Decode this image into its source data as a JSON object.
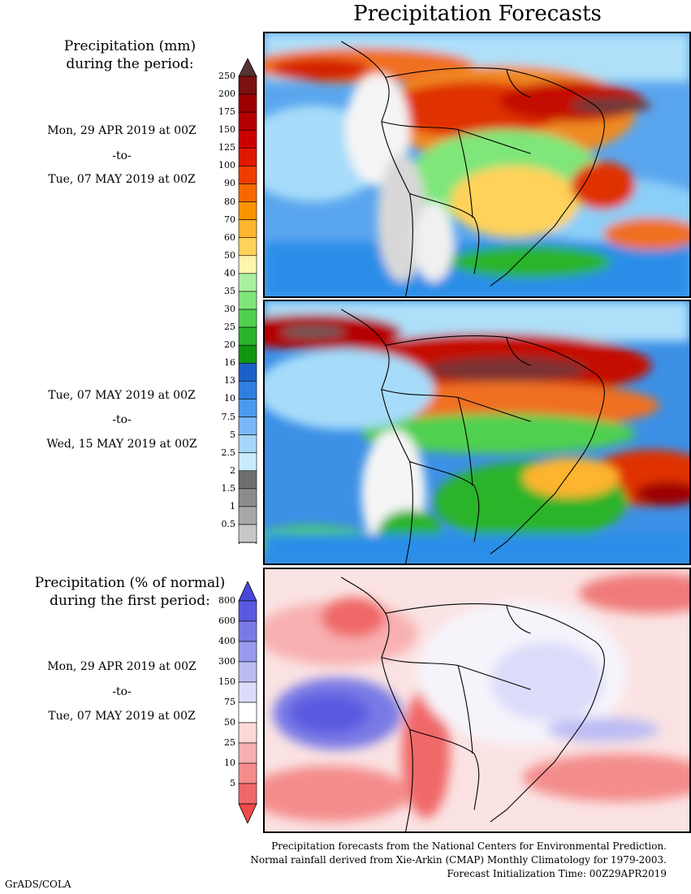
{
  "title": "Precipitation Forecasts",
  "panel_precip": {
    "heading_line1": "Precipitation (mm)",
    "heading_line2": "during the period:",
    "period1": {
      "start": "Mon, 29 APR 2019 at 00Z",
      "sep": "-to-",
      "end": "Tue, 07 MAY 2019 at 00Z"
    },
    "period2": {
      "start": "Tue, 07 MAY 2019 at 00Z",
      "sep": "-to-",
      "end": "Wed, 15 MAY 2019 at 00Z"
    },
    "legend_ticks": [
      "250",
      "200",
      "175",
      "150",
      "125",
      "100",
      "90",
      "80",
      "70",
      "60",
      "50",
      "40",
      "35",
      "30",
      "25",
      "20",
      "16",
      "13",
      "10",
      "7.5",
      "5",
      "2.5",
      "2",
      "1.5",
      "1",
      "0.5"
    ],
    "legend_colors": [
      "#7a1010",
      "#9c0000",
      "#b40000",
      "#cc0000",
      "#e01800",
      "#f03c00",
      "#f86800",
      "#fb9300",
      "#fdb42e",
      "#ffd25a",
      "#fff5aa",
      "#aaf0a0",
      "#7fe67a",
      "#50d050",
      "#2ab42a",
      "#109610",
      "#1c5fc8",
      "#2e7fe0",
      "#4a9bf0",
      "#78b8f8",
      "#a6d6fa",
      "#c8ecfc",
      "#6e6e6e",
      "#8c8c8c",
      "#a8a8a8",
      "#c8c8c8"
    ],
    "legend_top_arrow": "#553333",
    "legend_bottom_arrow": "#ffffff"
  },
  "panel_anomaly": {
    "heading_line1": "Precipitation (% of normal)",
    "heading_line2": "during the first period:",
    "period": {
      "start": "Mon, 29 APR 2019 at 00Z",
      "sep": "-to-",
      "end": "Tue, 07 MAY 2019 at 00Z"
    },
    "legend_ticks": [
      "800",
      "600",
      "400",
      "300",
      "150",
      "75",
      "50",
      "25",
      "10",
      "5"
    ],
    "legend_colors": [
      "#5a5ae0",
      "#7a7ae6",
      "#9a9aee",
      "#bcbcf4",
      "#dcdcfa",
      "#ffffff",
      "#fcd8d8",
      "#f8b0b0",
      "#f48c8c",
      "#f06868"
    ],
    "legend_top_arrow": "#4848d8",
    "legend_bottom_arrow": "#ee4a4a"
  },
  "footnotes": {
    "line1": "Precipitation forecasts from the National Centers for Environmental Prediction.",
    "line2": "Normal rainfall derived from Xie-Arkin (CMAP) Monthly Climatology for 1979-2003.",
    "line3": "Forecast Initialization Time: 00Z29APR2019"
  },
  "credit": "GrADS/COLA"
}
